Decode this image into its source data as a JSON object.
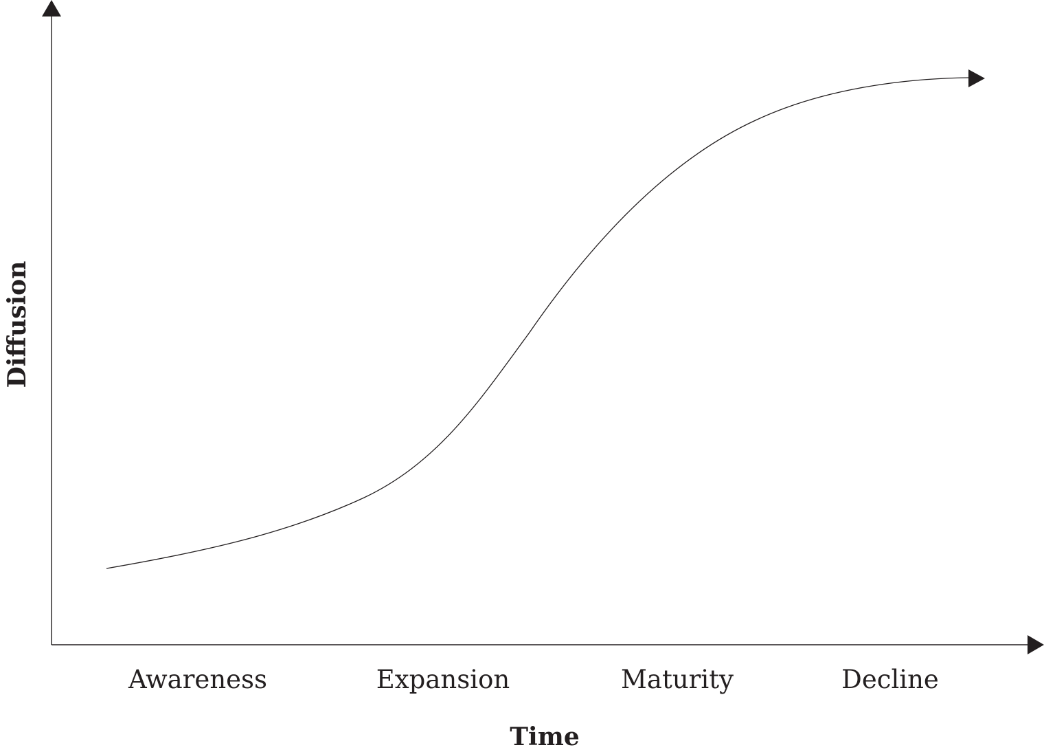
{
  "chart_data": {
    "type": "line",
    "xlabel": "Time",
    "ylabel": "Diffusion",
    "categories": [
      "Awareness",
      "Expansion",
      "Maturity",
      "Decline"
    ],
    "grid": false,
    "series": [
      {
        "values": [
          0.14,
          0.53,
          0.91,
          1.0
        ],
        "curve_shape": "s-curve"
      }
    ],
    "colors": {
      "ink": "#231f20",
      "background": "#ffffff"
    }
  }
}
